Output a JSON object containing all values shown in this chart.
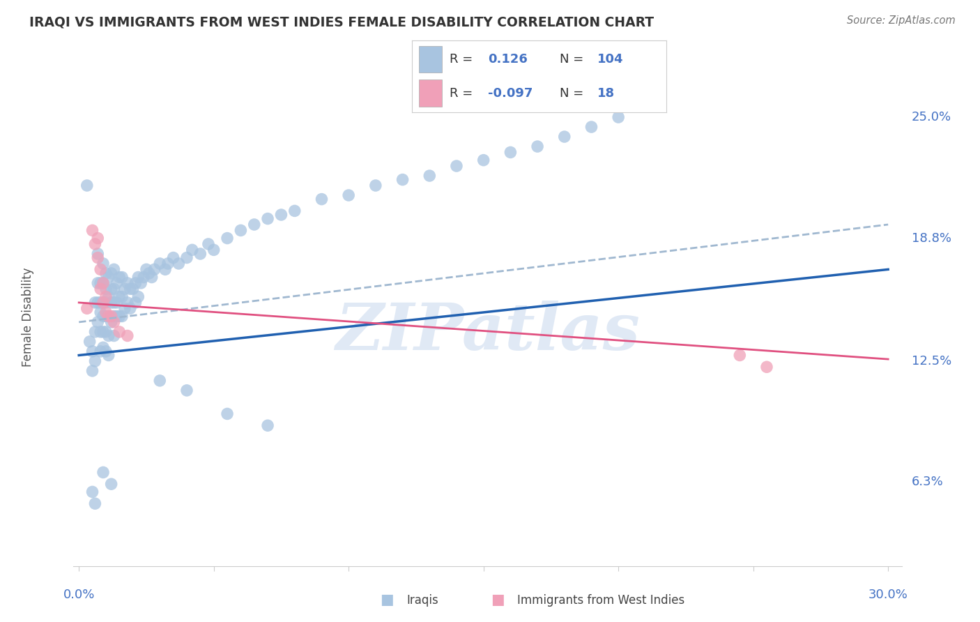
{
  "title": "IRAQI VS IMMIGRANTS FROM WEST INDIES FEMALE DISABILITY CORRELATION CHART",
  "source": "Source: ZipAtlas.com",
  "ylabel": "Female Disability",
  "ytick_labels": [
    "25.0%",
    "18.8%",
    "12.5%",
    "6.3%"
  ],
  "ytick_values": [
    0.25,
    0.188,
    0.125,
    0.063
  ],
  "xtick_labels": [
    "0.0%",
    "",
    "",
    "",
    "",
    "",
    "30.0%"
  ],
  "xtick_values": [
    0.0,
    0.05,
    0.1,
    0.15,
    0.2,
    0.25,
    0.3
  ],
  "xlim": [
    -0.002,
    0.305
  ],
  "ylim": [
    0.02,
    0.275
  ],
  "background_color": "#ffffff",
  "grid_color": "#d8d8d8",
  "watermark_text": "ZIPatlas",
  "watermark_color": "#c8d8ee",
  "legend_r_iraqis": "0.126",
  "legend_n_iraqis": "104",
  "legend_r_westindies": "-0.097",
  "legend_n_westindies": "18",
  "iraqis_color": "#a8c4e0",
  "westindies_color": "#f0a0b8",
  "trendline_iraqis_color": "#2060b0",
  "trendline_westindies_color": "#e05080",
  "trendline_dashed_color": "#a0b8d0",
  "iraqis_x": [
    0.003,
    0.004,
    0.005,
    0.005,
    0.006,
    0.006,
    0.006,
    0.007,
    0.007,
    0.007,
    0.007,
    0.008,
    0.008,
    0.008,
    0.008,
    0.008,
    0.009,
    0.009,
    0.009,
    0.009,
    0.009,
    0.009,
    0.01,
    0.01,
    0.01,
    0.01,
    0.01,
    0.01,
    0.011,
    0.011,
    0.011,
    0.011,
    0.011,
    0.012,
    0.012,
    0.012,
    0.012,
    0.013,
    0.013,
    0.013,
    0.013,
    0.013,
    0.014,
    0.014,
    0.014,
    0.015,
    0.015,
    0.015,
    0.016,
    0.016,
    0.016,
    0.017,
    0.017,
    0.018,
    0.018,
    0.019,
    0.019,
    0.02,
    0.021,
    0.021,
    0.022,
    0.022,
    0.023,
    0.024,
    0.025,
    0.026,
    0.027,
    0.028,
    0.03,
    0.032,
    0.033,
    0.035,
    0.037,
    0.04,
    0.042,
    0.045,
    0.048,
    0.05,
    0.055,
    0.06,
    0.065,
    0.07,
    0.075,
    0.08,
    0.09,
    0.1,
    0.11,
    0.12,
    0.13,
    0.14,
    0.15,
    0.16,
    0.17,
    0.18,
    0.19,
    0.2,
    0.03,
    0.04,
    0.055,
    0.07,
    0.005,
    0.006,
    0.009,
    0.012
  ],
  "iraqis_y": [
    0.215,
    0.135,
    0.13,
    0.12,
    0.155,
    0.14,
    0.125,
    0.18,
    0.165,
    0.155,
    0.145,
    0.165,
    0.155,
    0.15,
    0.14,
    0.13,
    0.175,
    0.165,
    0.155,
    0.148,
    0.14,
    0.132,
    0.17,
    0.162,
    0.155,
    0.148,
    0.14,
    0.13,
    0.168,
    0.158,
    0.148,
    0.138,
    0.128,
    0.17,
    0.162,
    0.155,
    0.145,
    0.172,
    0.162,
    0.155,
    0.148,
    0.138,
    0.165,
    0.155,
    0.148,
    0.168,
    0.158,
    0.148,
    0.168,
    0.158,
    0.148,
    0.162,
    0.152,
    0.165,
    0.155,
    0.162,
    0.152,
    0.162,
    0.165,
    0.155,
    0.168,
    0.158,
    0.165,
    0.168,
    0.172,
    0.17,
    0.168,
    0.172,
    0.175,
    0.172,
    0.175,
    0.178,
    0.175,
    0.178,
    0.182,
    0.18,
    0.185,
    0.182,
    0.188,
    0.192,
    0.195,
    0.198,
    0.2,
    0.202,
    0.208,
    0.21,
    0.215,
    0.218,
    0.22,
    0.225,
    0.228,
    0.232,
    0.235,
    0.24,
    0.245,
    0.25,
    0.115,
    0.11,
    0.098,
    0.092,
    0.058,
    0.052,
    0.068,
    0.062
  ],
  "westindies_x": [
    0.003,
    0.005,
    0.006,
    0.007,
    0.007,
    0.008,
    0.008,
    0.009,
    0.009,
    0.01,
    0.01,
    0.011,
    0.012,
    0.013,
    0.015,
    0.018,
    0.245,
    0.255
  ],
  "westindies_y": [
    0.152,
    0.192,
    0.185,
    0.188,
    0.178,
    0.172,
    0.162,
    0.165,
    0.155,
    0.158,
    0.15,
    0.148,
    0.148,
    0.145,
    0.14,
    0.138,
    0.128,
    0.122
  ],
  "trend_iraqis_x0": 0.0,
  "trend_iraqis_x1": 0.3,
  "trend_iraqis_y0": 0.128,
  "trend_iraqis_y1": 0.172,
  "trend_dashed_x0": 0.0,
  "trend_dashed_x1": 0.3,
  "trend_dashed_y0": 0.145,
  "trend_dashed_y1": 0.195,
  "trend_wi_x0": 0.0,
  "trend_wi_x1": 0.3,
  "trend_wi_y0": 0.155,
  "trend_wi_y1": 0.126
}
